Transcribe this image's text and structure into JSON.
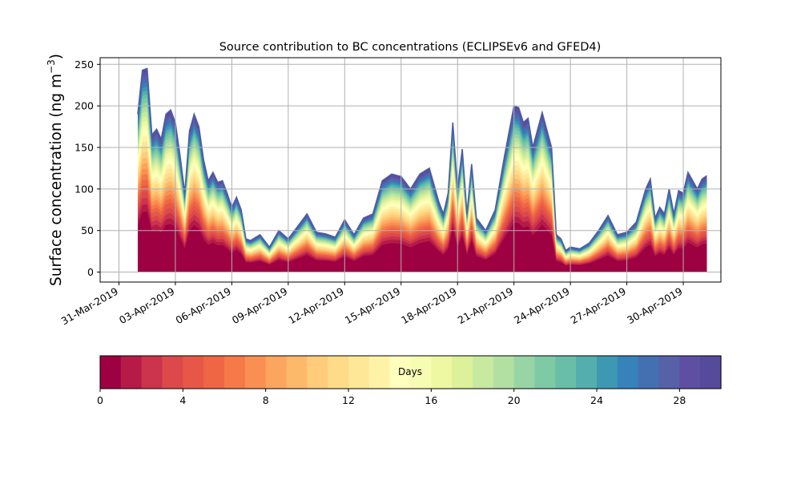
{
  "chart_data": {
    "type": "area",
    "title": "Source contribution to BC concentrations (ECLIPSEv6 and GFED4)",
    "ylabel_main": "Surface concentration (ng m",
    "ylabel_sup": "−3",
    "ylabel_close": ")",
    "xlabel": "",
    "ylim": [
      -12,
      258
    ],
    "xlim": [
      "2019-03-30",
      "2019-05-02"
    ],
    "grid": true,
    "y_ticks": [
      0,
      50,
      100,
      150,
      200,
      250
    ],
    "x_ticks": [
      {
        "date": "2019-03-31",
        "label": "31-Mar-2019"
      },
      {
        "date": "2019-04-03",
        "label": "03-Apr-2019"
      },
      {
        "date": "2019-04-06",
        "label": "06-Apr-2019"
      },
      {
        "date": "2019-04-09",
        "label": "09-Apr-2019"
      },
      {
        "date": "2019-04-12",
        "label": "12-Apr-2019"
      },
      {
        "date": "2019-04-15",
        "label": "15-Apr-2019"
      },
      {
        "date": "2019-04-18",
        "label": "18-Apr-2019"
      },
      {
        "date": "2019-04-21",
        "label": "21-Apr-2019"
      },
      {
        "date": "2019-04-24",
        "label": "24-Apr-2019"
      },
      {
        "date": "2019-04-27",
        "label": "27-Apr-2019"
      },
      {
        "date": "2019-04-30",
        "label": "30-Apr-2019"
      }
    ],
    "total_series": {
      "x": [
        "2019-04-01 00:00",
        "2019-04-01 06:00",
        "2019-04-01 12:00",
        "2019-04-01 18:00",
        "2019-04-02 00:00",
        "2019-04-02 06:00",
        "2019-04-02 12:00",
        "2019-04-02 18:00",
        "2019-04-03 00:00",
        "2019-04-03 06:00",
        "2019-04-03 12:00",
        "2019-04-03 18:00",
        "2019-04-04 00:00",
        "2019-04-04 06:00",
        "2019-04-04 12:00",
        "2019-04-04 18:00",
        "2019-04-05 00:00",
        "2019-04-05 06:00",
        "2019-04-05 12:00",
        "2019-04-05 18:00",
        "2019-04-06 00:00",
        "2019-04-06 06:00",
        "2019-04-06 12:00",
        "2019-04-06 18:00",
        "2019-04-07 00:00",
        "2019-04-07 12:00",
        "2019-04-08 00:00",
        "2019-04-08 12:00",
        "2019-04-09 00:00",
        "2019-04-09 12:00",
        "2019-04-10 00:00",
        "2019-04-10 12:00",
        "2019-04-11 00:00",
        "2019-04-11 12:00",
        "2019-04-12 00:00",
        "2019-04-12 12:00",
        "2019-04-13 00:00",
        "2019-04-13 12:00",
        "2019-04-14 00:00",
        "2019-04-14 12:00",
        "2019-04-15 00:00",
        "2019-04-15 12:00",
        "2019-04-16 00:00",
        "2019-04-16 12:00",
        "2019-04-17 00:00",
        "2019-04-17 06:00",
        "2019-04-17 12:00",
        "2019-04-17 18:00",
        "2019-04-18 00:00",
        "2019-04-18 06:00",
        "2019-04-18 12:00",
        "2019-04-18 18:00",
        "2019-04-19 00:00",
        "2019-04-19 12:00",
        "2019-04-20 00:00",
        "2019-04-20 12:00",
        "2019-04-21 00:00",
        "2019-04-21 06:00",
        "2019-04-21 12:00",
        "2019-04-21 18:00",
        "2019-04-22 00:00",
        "2019-04-22 12:00",
        "2019-04-23 00:00",
        "2019-04-23 06:00",
        "2019-04-23 12:00",
        "2019-04-23 18:00",
        "2019-04-24 00:00",
        "2019-04-24 12:00",
        "2019-04-25 00:00",
        "2019-04-25 12:00",
        "2019-04-26 00:00",
        "2019-04-26 12:00",
        "2019-04-27 00:00",
        "2019-04-27 12:00",
        "2019-04-28 00:00",
        "2019-04-28 06:00",
        "2019-04-28 12:00",
        "2019-04-28 18:00",
        "2019-04-29 00:00",
        "2019-04-29 06:00",
        "2019-04-29 12:00",
        "2019-04-29 18:00",
        "2019-04-30 00:00",
        "2019-04-30 06:00",
        "2019-04-30 12:00",
        "2019-04-30 18:00",
        "2019-05-01 00:00",
        "2019-05-01 06:00"
      ],
      "values": [
        190,
        243,
        245,
        165,
        172,
        160,
        190,
        195,
        180,
        140,
        95,
        170,
        190,
        175,
        135,
        110,
        120,
        108,
        110,
        95,
        78,
        90,
        75,
        40,
        38,
        45,
        30,
        50,
        40,
        55,
        70,
        48,
        46,
        42,
        63,
        45,
        65,
        70,
        110,
        118,
        115,
        100,
        118,
        125,
        85,
        70,
        95,
        180,
        100,
        148,
        70,
        130,
        65,
        50,
        75,
        140,
        200,
        198,
        180,
        185,
        150,
        192,
        150,
        45,
        40,
        26,
        30,
        28,
        35,
        50,
        68,
        45,
        48,
        60,
        100,
        112,
        65,
        78,
        70,
        100,
        70,
        98,
        95,
        120,
        110,
        100,
        112,
        116
      ]
    },
    "layer_fractions": [
      0.33,
      0.04,
      0.035,
      0.035,
      0.035,
      0.03,
      0.03,
      0.03,
      0.03,
      0.03,
      0.03,
      0.03,
      0.03,
      0.03,
      0.03,
      0.025,
      0.025,
      0.025,
      0.025,
      0.025,
      0.025,
      0.025,
      0.02,
      0.02,
      0.02,
      0.02,
      0.02,
      0.02,
      0.02,
      0.02
    ],
    "colorbar": {
      "label": "Days",
      "range": [
        0,
        30
      ],
      "ticks": [
        0,
        4,
        8,
        12,
        16,
        20,
        24,
        28
      ],
      "colors": [
        "#9e0142",
        "#b61b48",
        "#cc334c",
        "#dc494a",
        "#e75747",
        "#ef6645",
        "#f57a48",
        "#f98f53",
        "#fca55e",
        "#fdb96a",
        "#fecc7b",
        "#fedb88",
        "#fee796",
        "#fff3a8",
        "#ffffbe",
        "#f7fcb3",
        "#eef8a2",
        "#dcf199",
        "#c8e9a0",
        "#b2e0a2",
        "#98d5a4",
        "#7dcaa5",
        "#68bea6",
        "#54aead",
        "#3f98b3",
        "#3683bb",
        "#4470b1",
        "#5661a8",
        "#5e4fa2",
        "#564a9c"
      ]
    }
  }
}
